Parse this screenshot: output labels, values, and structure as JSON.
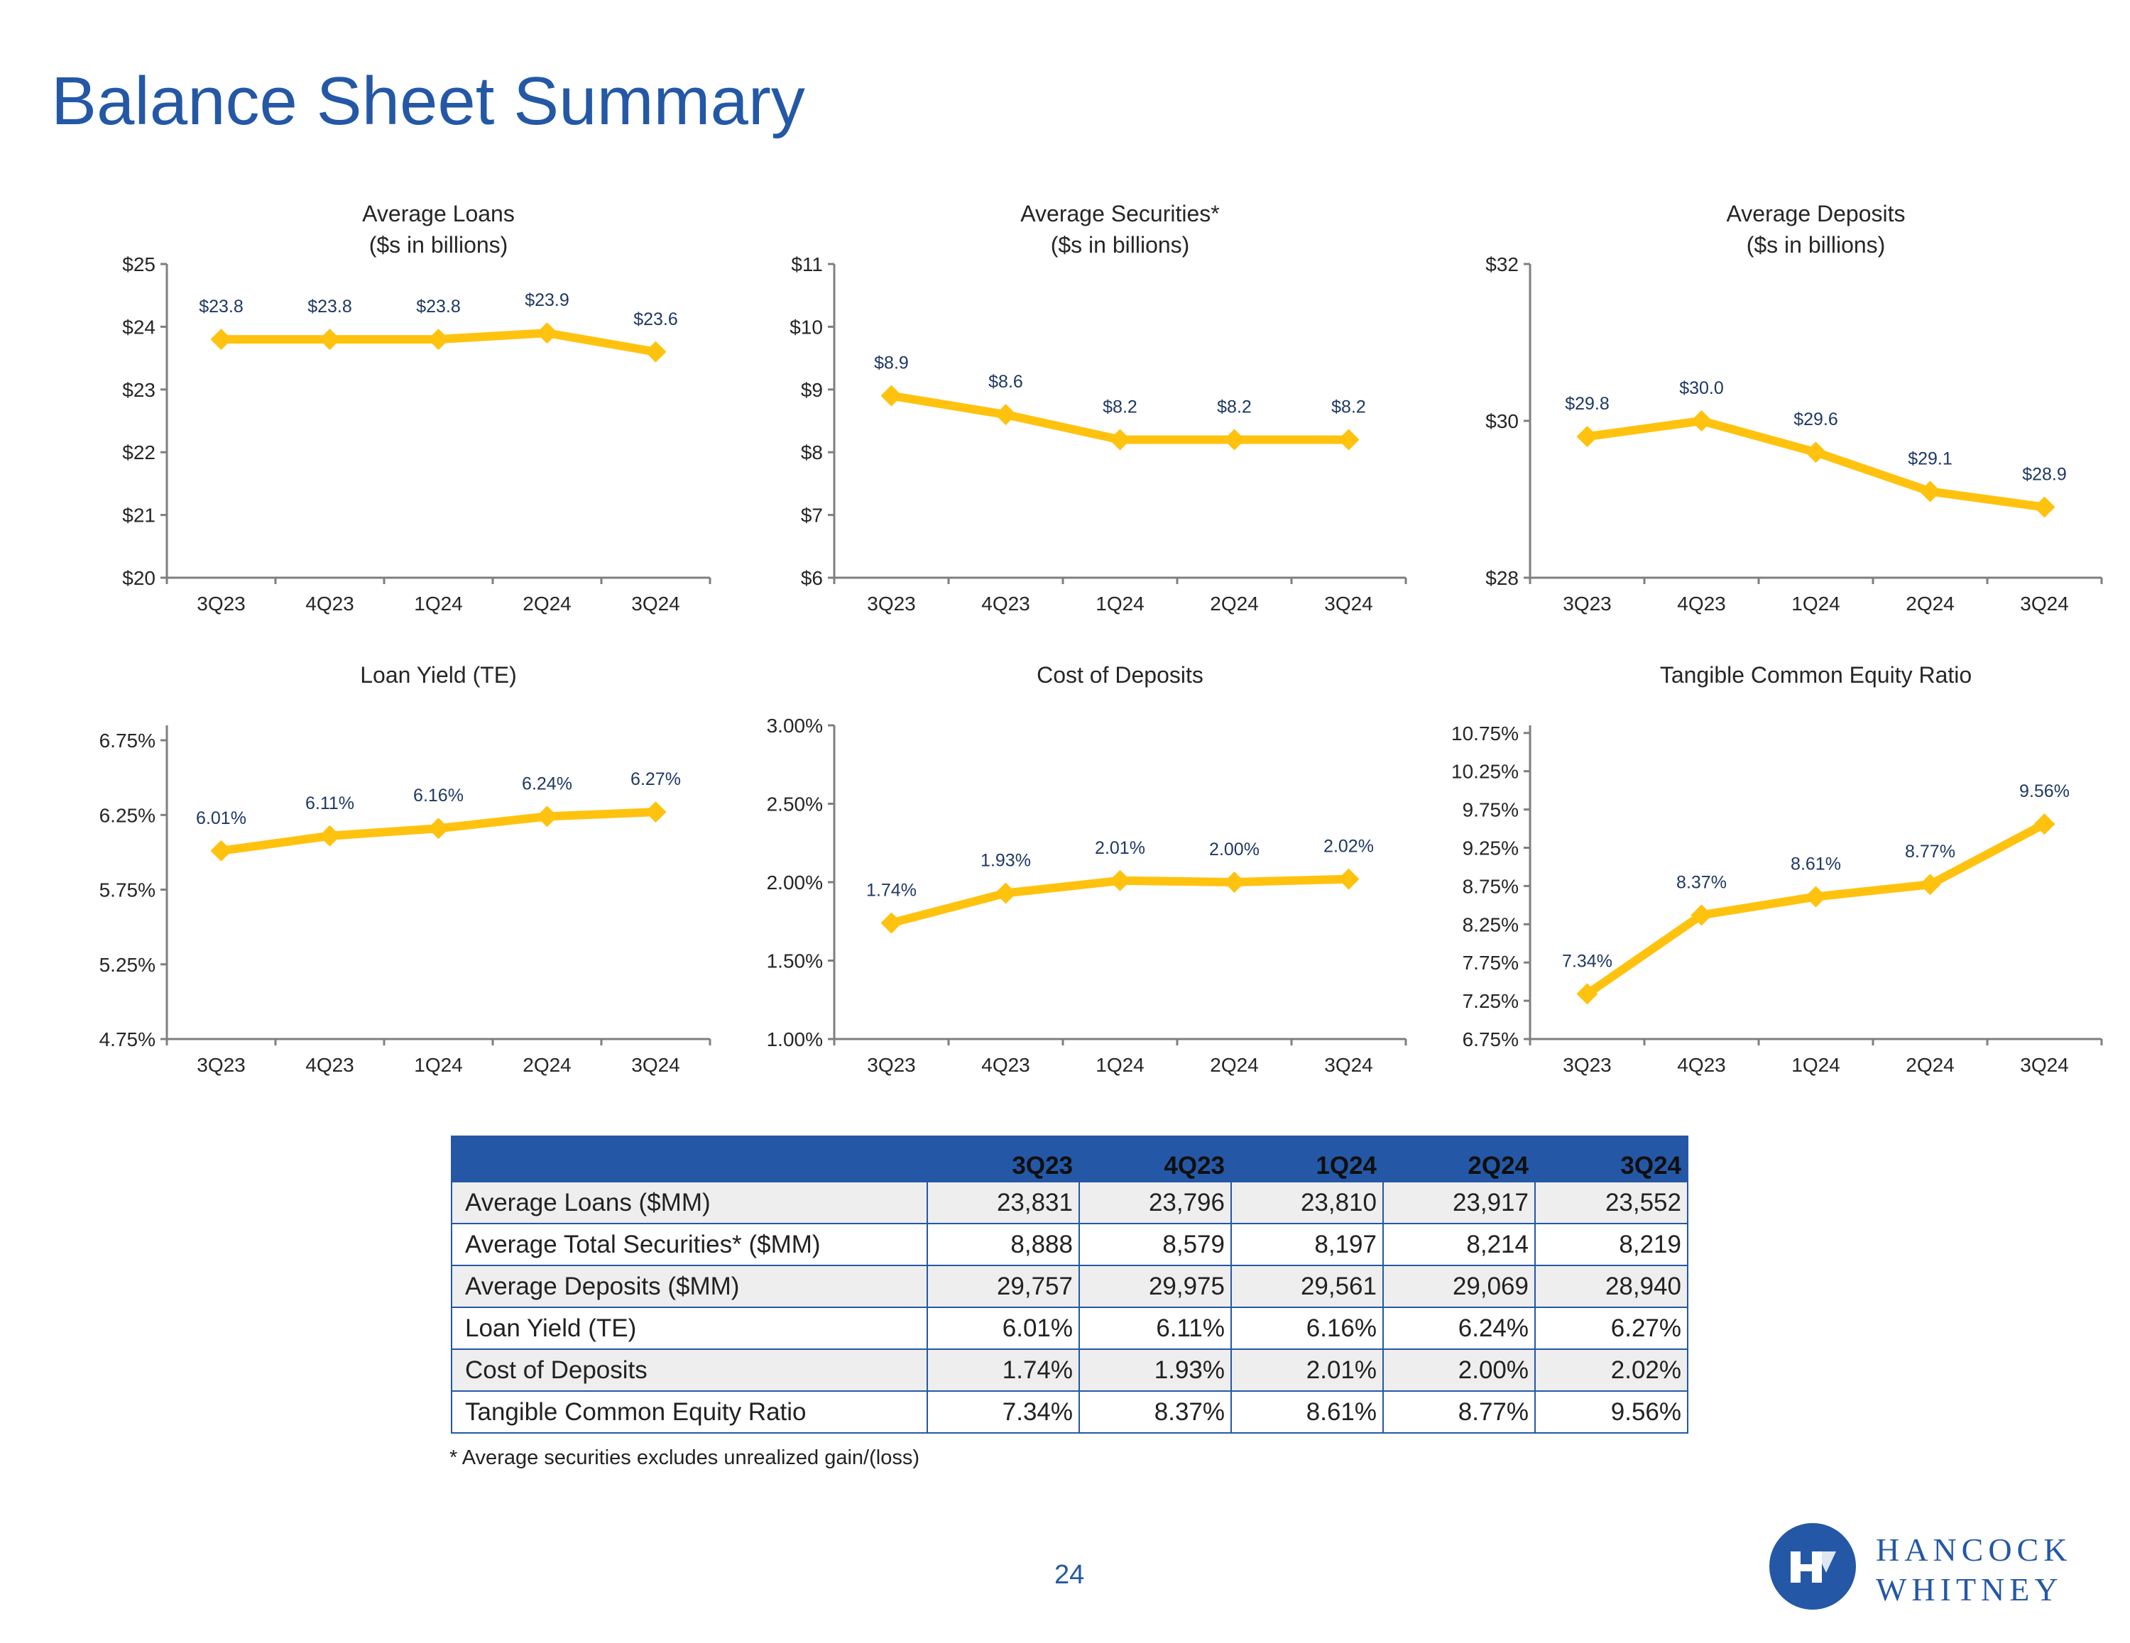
{
  "page": {
    "title": "Balance Sheet Summary",
    "footnote": "* Average securities excludes unrealized gain/(loss)",
    "page_number": "24",
    "logo": {
      "line1": "HANCOCK",
      "line2": "WHITNEY"
    }
  },
  "colors": {
    "line": "#FFC20E",
    "title": "#2458A6",
    "label": "#1F3864",
    "axis": "#7F7F7F"
  },
  "chart_data": [
    {
      "type": "line",
      "title_lines": [
        "Average Loans",
        "($s in billions)"
      ],
      "categories": [
        "3Q23",
        "4Q23",
        "1Q24",
        "2Q24",
        "3Q24"
      ],
      "values": [
        23.8,
        23.8,
        23.8,
        23.9,
        23.6
      ],
      "value_labels": [
        "$23.8",
        "$23.8",
        "$23.8",
        "$23.9",
        "$23.6"
      ],
      "ylim": [
        20,
        25
      ],
      "yticks": [
        20,
        21,
        22,
        23,
        24,
        25
      ],
      "ytick_labels": [
        "$20",
        "$21",
        "$22",
        "$23",
        "$24",
        "$25"
      ]
    },
    {
      "type": "line",
      "title_lines": [
        "Average Securities*",
        "($s in billions)"
      ],
      "categories": [
        "3Q23",
        "4Q23",
        "1Q24",
        "2Q24",
        "3Q24"
      ],
      "values": [
        8.9,
        8.6,
        8.2,
        8.2,
        8.2
      ],
      "value_labels": [
        "$8.9",
        "$8.6",
        "$8.2",
        "$8.2",
        "$8.2"
      ],
      "ylim": [
        6,
        11
      ],
      "yticks": [
        6,
        7,
        8,
        9,
        10,
        11
      ],
      "ytick_labels": [
        "$6",
        "$7",
        "$8",
        "$9",
        "$10",
        "$11"
      ]
    },
    {
      "type": "line",
      "title_lines": [
        "Average Deposits",
        "($s in billions)"
      ],
      "categories": [
        "3Q23",
        "4Q23",
        "1Q24",
        "2Q24",
        "3Q24"
      ],
      "values": [
        29.8,
        30.0,
        29.6,
        29.1,
        28.9
      ],
      "value_labels": [
        "$29.8",
        "$30.0",
        "$29.6",
        "$29.1",
        "$28.9"
      ],
      "ylim": [
        28,
        32
      ],
      "yticks": [
        28,
        30,
        32
      ],
      "ytick_labels": [
        "$28",
        "$30",
        "$32"
      ]
    },
    {
      "type": "line",
      "title_lines": [
        "Loan Yield (TE)"
      ],
      "categories": [
        "3Q23",
        "4Q23",
        "1Q24",
        "2Q24",
        "3Q24"
      ],
      "values": [
        6.01,
        6.11,
        6.16,
        6.24,
        6.27
      ],
      "value_labels": [
        "6.01%",
        "6.11%",
        "6.16%",
        "6.24%",
        "6.27%"
      ],
      "ylim": [
        4.75,
        6.85
      ],
      "yticks": [
        4.75,
        5.25,
        5.75,
        6.25,
        6.75
      ],
      "ytick_labels": [
        "4.75%",
        "5.25%",
        "5.75%",
        "6.25%",
        "6.75%"
      ]
    },
    {
      "type": "line",
      "title_lines": [
        "Cost of Deposits"
      ],
      "categories": [
        "3Q23",
        "4Q23",
        "1Q24",
        "2Q24",
        "3Q24"
      ],
      "values": [
        1.74,
        1.93,
        2.01,
        2.0,
        2.02
      ],
      "value_labels": [
        "1.74%",
        "1.93%",
        "2.01%",
        "2.00%",
        "2.02%"
      ],
      "ylim": [
        1.0,
        3.0
      ],
      "yticks": [
        1.0,
        1.5,
        2.0,
        2.5,
        3.0
      ],
      "ytick_labels": [
        "1.00%",
        "1.50%",
        "2.00%",
        "2.50%",
        "3.00%"
      ]
    },
    {
      "type": "line",
      "title_lines": [
        "Tangible Common Equity Ratio"
      ],
      "categories": [
        "3Q23",
        "4Q23",
        "1Q24",
        "2Q24",
        "3Q24"
      ],
      "values": [
        7.34,
        8.37,
        8.61,
        8.77,
        9.56
      ],
      "value_labels": [
        "7.34%",
        "8.37%",
        "8.61%",
        "8.77%",
        "9.56%"
      ],
      "ylim": [
        6.75,
        10.85
      ],
      "yticks": [
        6.75,
        7.25,
        7.75,
        8.25,
        8.75,
        9.25,
        9.75,
        10.25,
        10.75
      ],
      "ytick_labels": [
        "6.75%",
        "7.25%",
        "7.75%",
        "8.25%",
        "8.75%",
        "9.25%",
        "9.75%",
        "10.25%",
        "10.75%"
      ]
    }
  ],
  "table": {
    "columns": [
      "3Q23",
      "4Q23",
      "1Q24",
      "2Q24",
      "3Q24"
    ],
    "rows": [
      {
        "label": "Average Loans ($MM)",
        "values": [
          "23,831",
          "23,796",
          "23,810",
          "23,917",
          "23,552"
        ]
      },
      {
        "label": "Average Total Securities* ($MM)",
        "values": [
          "8,888",
          "8,579",
          "8,197",
          "8,214",
          "8,219"
        ]
      },
      {
        "label": "Average Deposits ($MM)",
        "values": [
          "29,757",
          "29,975",
          "29,561",
          "29,069",
          "28,940"
        ]
      },
      {
        "label": "Loan Yield (TE)",
        "values": [
          "6.01%",
          "6.11%",
          "6.16%",
          "6.24%",
          "6.27%"
        ]
      },
      {
        "label": "Cost of Deposits",
        "values": [
          "1.74%",
          "1.93%",
          "2.01%",
          "2.00%",
          "2.02%"
        ]
      },
      {
        "label": "Tangible Common Equity Ratio",
        "values": [
          "7.34%",
          "8.37%",
          "8.61%",
          "8.77%",
          "9.56%"
        ]
      }
    ]
  }
}
